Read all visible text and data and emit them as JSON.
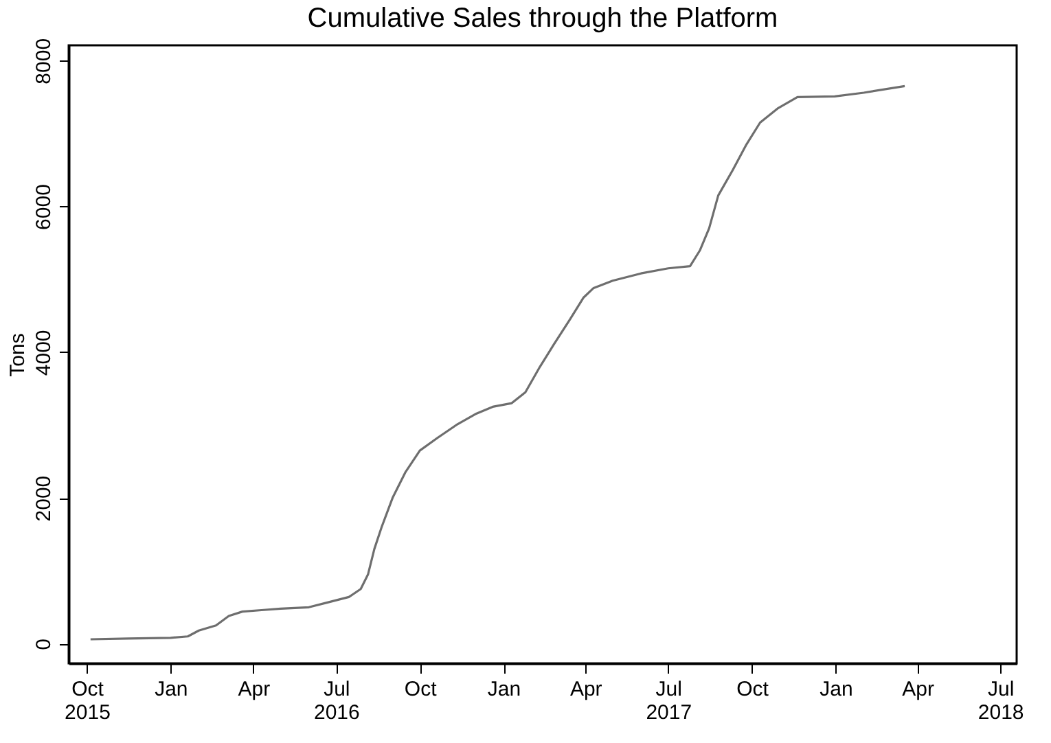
{
  "chart_data": {
    "type": "line",
    "title": "Cumulative Sales through the Platform",
    "ylabel": "Tons",
    "x": [
      "2015-10-05",
      "2015-11-15",
      "2016-01-01",
      "2016-01-20",
      "2016-02-01",
      "2016-02-20",
      "2016-03-05",
      "2016-03-20",
      "2016-04-10",
      "2016-05-01",
      "2016-06-01",
      "2016-06-20",
      "2016-07-15",
      "2016-07-28",
      "2016-08-05",
      "2016-08-12",
      "2016-08-20",
      "2016-09-01",
      "2016-09-15",
      "2016-10-01",
      "2016-10-20",
      "2016-11-10",
      "2016-12-01",
      "2016-12-20",
      "2017-01-10",
      "2017-01-25",
      "2017-02-10",
      "2017-02-25",
      "2017-03-15",
      "2017-03-30",
      "2017-04-10",
      "2017-05-01",
      "2017-06-01",
      "2017-07-01",
      "2017-07-25",
      "2017-08-05",
      "2017-08-15",
      "2017-08-25",
      "2017-09-10",
      "2017-09-25",
      "2017-10-10",
      "2017-10-30",
      "2017-11-20",
      "2017-12-31",
      "2018-02-01",
      "2018-03-18"
    ],
    "series": [
      {
        "color": "#6e6e6e",
        "values": [
          60,
          70,
          80,
          100,
          180,
          250,
          380,
          440,
          460,
          480,
          500,
          560,
          640,
          750,
          950,
          1300,
          1600,
          2000,
          2350,
          2650,
          2820,
          3000,
          3150,
          3250,
          3300,
          3450,
          3800,
          4100,
          4450,
          4750,
          4880,
          4980,
          5080,
          5150,
          5180,
          5400,
          5700,
          6150,
          6500,
          6850,
          7150,
          7350,
          7500,
          7510,
          7560,
          7650
        ]
      }
    ],
    "xlim": [
      "2015-09-11",
      "2018-07-19"
    ],
    "xticks": [
      {
        "value": "2015-10-01",
        "label": "Oct\n2015"
      },
      {
        "value": "2016-01-01",
        "label": "Jan"
      },
      {
        "value": "2016-04-01",
        "label": "Apr"
      },
      {
        "value": "2016-07-01",
        "label": "Jul\n2016"
      },
      {
        "value": "2016-10-01",
        "label": "Oct"
      },
      {
        "value": "2017-01-01",
        "label": "Jan"
      },
      {
        "value": "2017-04-01",
        "label": "Apr"
      },
      {
        "value": "2017-07-01",
        "label": "Jul\n2017"
      },
      {
        "value": "2017-10-01",
        "label": "Oct"
      },
      {
        "value": "2018-01-01",
        "label": "Jan"
      },
      {
        "value": "2018-04-01",
        "label": "Apr"
      },
      {
        "value": "2018-07-01",
        "label": "Jul\n2018"
      }
    ],
    "ylim": [
      -270,
      8210
    ],
    "yticks": [
      0,
      2000,
      4000,
      6000,
      8000
    ],
    "grid": false,
    "line_style": "solid",
    "marker": "none"
  }
}
